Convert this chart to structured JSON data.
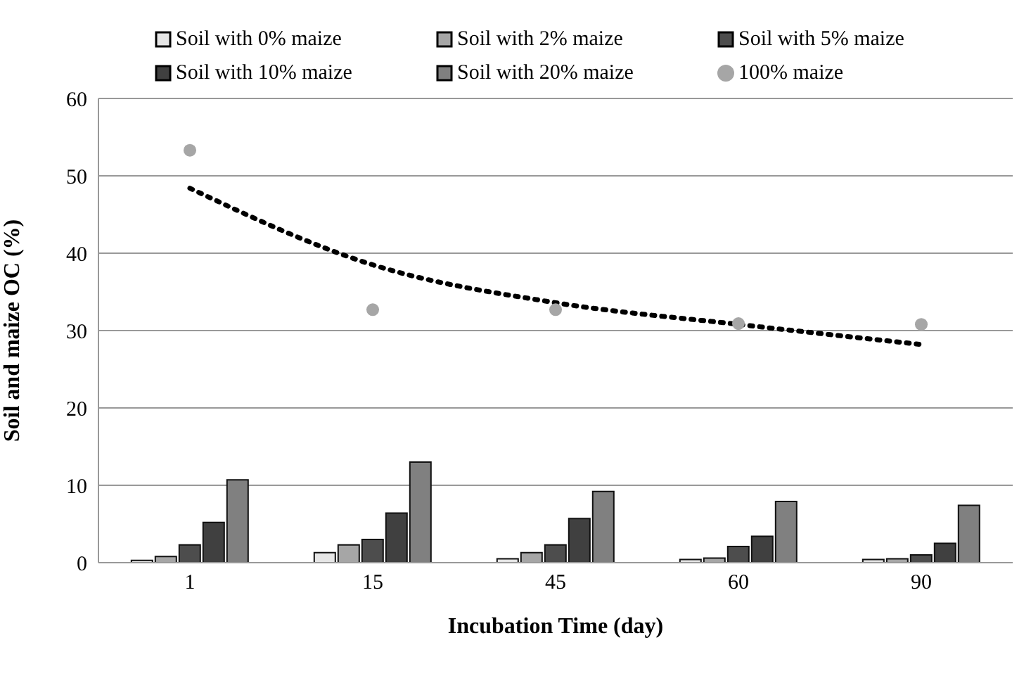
{
  "chart_data": {
    "type": "bar",
    "xlabel": "Incubation Time (day)",
    "ylabel": "Soil and maize OC (%)",
    "categories": [
      "1",
      "15",
      "45",
      "60",
      "90"
    ],
    "series": [
      {
        "name": "Soil with 0% maize",
        "color": "#e6e6e6",
        "values": [
          0.3,
          1.3,
          0.5,
          0.4,
          0.4
        ]
      },
      {
        "name": "Soil with 2% maize",
        "color": "#a6a6a6",
        "values": [
          0.8,
          2.3,
          1.3,
          0.6,
          0.5
        ]
      },
      {
        "name": "Soil with 5% maize",
        "color": "#4d4d4d",
        "values": [
          2.3,
          3.0,
          2.3,
          2.1,
          1.0
        ]
      },
      {
        "name": "Soil with 10% maize",
        "color": "#404040",
        "values": [
          5.2,
          6.4,
          5.7,
          3.4,
          2.5
        ]
      },
      {
        "name": "Soil with 20% maize",
        "color": "#808080",
        "values": [
          10.7,
          13.0,
          9.2,
          7.9,
          7.4
        ]
      },
      {
        "name": "100% maize",
        "type": "scatter",
        "marker": "circle",
        "color": "#a6a6a6",
        "values": [
          53.3,
          32.7,
          32.7,
          30.9,
          30.8
        ]
      },
      {
        "type": "line",
        "color": "#000000",
        "line_style": "dotted",
        "marker": "none",
        "x": [
          "1",
          "15",
          "45",
          "60",
          "90"
        ],
        "values": [
          48.4,
          38.5,
          33.6,
          30.8,
          28.2
        ]
      }
    ],
    "ylim": [
      0,
      60
    ],
    "yticks": [
      0,
      10,
      20,
      30,
      40,
      50,
      60
    ],
    "grid": "y",
    "legend": "top"
  }
}
